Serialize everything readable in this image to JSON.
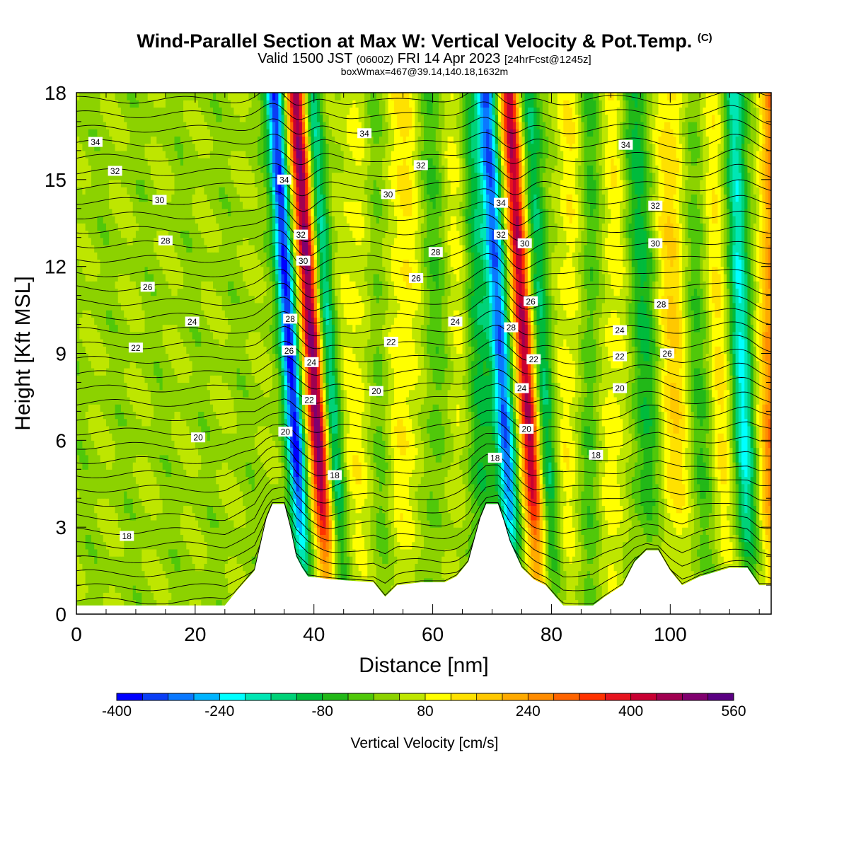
{
  "header": {
    "title": "Wind-Parallel Section at Max W: Vertical Velocity & Pot.Temp.",
    "copyright": "(C)",
    "valid_prefix": "Valid 1500 JST",
    "valid_utc": "(0600Z)",
    "valid_date": "FRI 14 Apr 2023",
    "forecast": "[24hrFcst@1245z]",
    "box_info": "boxWmax=467@39.14,140.18,1632m"
  },
  "chart_data": {
    "type": "heatmap",
    "xlabel": "Distance [nm]",
    "ylabel": "Height [Kft MSL]",
    "xlim": [
      0,
      117
    ],
    "ylim": [
      0,
      18
    ],
    "x_ticks": [
      0,
      20,
      40,
      60,
      80,
      100
    ],
    "y_ticks": [
      0,
      3,
      6,
      9,
      12,
      15,
      18
    ],
    "colorbar": {
      "label": "Vertical Velocity [cm/s]",
      "min": -400,
      "max": 560,
      "step": 40,
      "tick_labels": [
        -400,
        -240,
        -80,
        80,
        240,
        400,
        560
      ],
      "colors": [
        "#0000ff",
        "#0a3ef5",
        "#0a78ff",
        "#00b4ff",
        "#00ffff",
        "#00e6b4",
        "#00d278",
        "#00bb3c",
        "#22b818",
        "#50c80a",
        "#8cd200",
        "#bee600",
        "#ffff00",
        "#ffe100",
        "#ffc800",
        "#ffaa00",
        "#ff8c00",
        "#ff6400",
        "#ff3200",
        "#e6141e",
        "#c80032",
        "#a00050",
        "#80006e",
        "#5a0082"
      ]
    },
    "terrain_kft": [
      [
        0,
        0.3
      ],
      [
        25,
        0.3
      ],
      [
        27,
        0.8
      ],
      [
        30,
        1.5
      ],
      [
        32,
        3.3
      ],
      [
        33,
        3.8
      ],
      [
        35,
        3.8
      ],
      [
        36,
        3.0
      ],
      [
        37,
        2.0
      ],
      [
        38,
        1.6
      ],
      [
        39,
        1.3
      ],
      [
        43,
        1.2
      ],
      [
        50,
        1.1
      ],
      [
        52,
        0.6
      ],
      [
        54,
        1.0
      ],
      [
        58,
        1.1
      ],
      [
        62,
        1.1
      ],
      [
        64,
        1.3
      ],
      [
        66,
        1.8
      ],
      [
        68,
        3.3
      ],
      [
        69,
        3.8
      ],
      [
        71,
        3.8
      ],
      [
        72,
        3.2
      ],
      [
        73,
        2.5
      ],
      [
        75,
        1.6
      ],
      [
        77,
        1.2
      ],
      [
        79,
        1.0
      ],
      [
        82,
        0.3
      ],
      [
        87,
        0.3
      ],
      [
        89,
        0.6
      ],
      [
        92,
        1.0
      ],
      [
        94,
        1.8
      ],
      [
        96,
        2.2
      ],
      [
        98,
        2.2
      ],
      [
        100,
        1.5
      ],
      [
        102,
        1.0
      ],
      [
        105,
        1.3
      ],
      [
        110,
        1.6
      ],
      [
        113,
        1.6
      ],
      [
        115,
        1.0
      ],
      [
        117,
        1.0
      ]
    ],
    "vertical_velocity_features": [
      {
        "x": 36.0,
        "tilt": 0.3,
        "amp": -400,
        "width": 1.5
      },
      {
        "x": 39.8,
        "tilt": 0.32,
        "amp": 470,
        "width": 1.6
      },
      {
        "x": 42.5,
        "tilt": 0.3,
        "amp": -200,
        "width": 1.5
      },
      {
        "x": 47.5,
        "tilt": 0.0,
        "amp": 70,
        "width": 3.5
      },
      {
        "x": 51.0,
        "tilt": 0.15,
        "amp": -90,
        "width": 2.0
      },
      {
        "x": 55.0,
        "tilt": 0.0,
        "amp": 90,
        "width": 3.5
      },
      {
        "x": 60.5,
        "tilt": 0.1,
        "amp": -80,
        "width": 2.5
      },
      {
        "x": 64.0,
        "tilt": 0.0,
        "amp": 70,
        "width": 3.0
      },
      {
        "x": 67.5,
        "tilt": 0.1,
        "amp": -140,
        "width": 2.2
      },
      {
        "x": 71.5,
        "tilt": 0.28,
        "amp": -350,
        "width": 1.6
      },
      {
        "x": 75.5,
        "tilt": 0.3,
        "amp": 430,
        "width": 1.6
      },
      {
        "x": 78.5,
        "tilt": 0.25,
        "amp": -170,
        "width": 1.6
      },
      {
        "x": 83.0,
        "tilt": 0.0,
        "amp": 80,
        "width": 2.5
      },
      {
        "x": 86.5,
        "tilt": 0.0,
        "amp": -90,
        "width": 2.0
      },
      {
        "x": 90.5,
        "tilt": 0.0,
        "amp": 80,
        "width": 3.0
      },
      {
        "x": 95.5,
        "tilt": 0.2,
        "amp": -130,
        "width": 2.5
      },
      {
        "x": 100.5,
        "tilt": 0.0,
        "amp": 130,
        "width": 3.0
      },
      {
        "x": 105.0,
        "tilt": 0.15,
        "amp": -100,
        "width": 2.5
      },
      {
        "x": 108.0,
        "tilt": 0.1,
        "amp": 110,
        "width": 2.5
      },
      {
        "x": 112.0,
        "tilt": 0.15,
        "amp": -240,
        "width": 1.8
      },
      {
        "x": 117.0,
        "tilt": 0.0,
        "amp": 230,
        "width": 2.0
      }
    ],
    "theta_contour_labels": [
      {
        "v": "34",
        "x": 3.2,
        "y": 16.3
      },
      {
        "v": "32",
        "x": 6.5,
        "y": 15.3
      },
      {
        "v": "30",
        "x": 14.0,
        "y": 14.3
      },
      {
        "v": "28",
        "x": 15.0,
        "y": 12.9
      },
      {
        "v": "26",
        "x": 12.0,
        "y": 11.3
      },
      {
        "v": "24",
        "x": 19.5,
        "y": 10.1
      },
      {
        "v": "22",
        "x": 10.0,
        "y": 9.2
      },
      {
        "v": "20",
        "x": 20.5,
        "y": 6.1
      },
      {
        "v": "18",
        "x": 8.5,
        "y": 2.7
      },
      {
        "v": "34",
        "x": 35.0,
        "y": 15.0
      },
      {
        "v": "32",
        "x": 37.8,
        "y": 13.1
      },
      {
        "v": "30",
        "x": 38.2,
        "y": 12.2
      },
      {
        "v": "28",
        "x": 36.0,
        "y": 10.2
      },
      {
        "v": "26",
        "x": 35.8,
        "y": 9.1
      },
      {
        "v": "24",
        "x": 39.6,
        "y": 8.7
      },
      {
        "v": "22",
        "x": 39.2,
        "y": 7.4
      },
      {
        "v": "20",
        "x": 35.2,
        "y": 6.3
      },
      {
        "v": "18",
        "x": 43.5,
        "y": 4.8
      },
      {
        "v": "34",
        "x": 48.5,
        "y": 16.6
      },
      {
        "v": "32",
        "x": 58.0,
        "y": 15.5
      },
      {
        "v": "30",
        "x": 52.5,
        "y": 14.5
      },
      {
        "v": "28",
        "x": 60.5,
        "y": 12.5
      },
      {
        "v": "26",
        "x": 57.2,
        "y": 11.6
      },
      {
        "v": "24",
        "x": 63.8,
        "y": 10.1
      },
      {
        "v": "22",
        "x": 53.0,
        "y": 9.4
      },
      {
        "v": "20",
        "x": 50.5,
        "y": 7.7
      },
      {
        "v": "18",
        "x": 70.5,
        "y": 5.4
      },
      {
        "v": "34",
        "x": 71.5,
        "y": 14.2
      },
      {
        "v": "32",
        "x": 71.5,
        "y": 13.1
      },
      {
        "v": "30",
        "x": 75.5,
        "y": 12.8
      },
      {
        "v": "28",
        "x": 73.2,
        "y": 9.9
      },
      {
        "v": "26",
        "x": 76.5,
        "y": 10.8
      },
      {
        "v": "24",
        "x": 75.0,
        "y": 7.8
      },
      {
        "v": "22",
        "x": 77.0,
        "y": 8.8
      },
      {
        "v": "20",
        "x": 75.8,
        "y": 6.4
      },
      {
        "v": "18",
        "x": 87.5,
        "y": 5.5
      },
      {
        "v": "34",
        "x": 92.5,
        "y": 16.2
      },
      {
        "v": "32",
        "x": 97.5,
        "y": 14.1
      },
      {
        "v": "30",
        "x": 97.5,
        "y": 12.8
      },
      {
        "v": "28",
        "x": 98.5,
        "y": 10.7
      },
      {
        "v": "26",
        "x": 99.5,
        "y": 9.0
      },
      {
        "v": "24",
        "x": 91.5,
        "y": 9.8
      },
      {
        "v": "22",
        "x": 91.5,
        "y": 8.9
      },
      {
        "v": "20",
        "x": 91.5,
        "y": 7.8
      }
    ]
  }
}
